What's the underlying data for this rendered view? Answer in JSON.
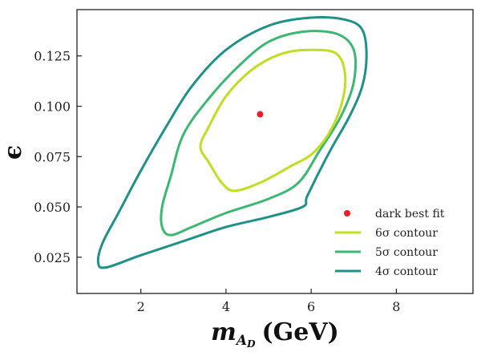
{
  "chart_data": {
    "type": "contour",
    "xlabel_main": "m",
    "xlabel_sub": "A",
    "xlabel_subsub": "D",
    "xlabel_unit": "(GeV)",
    "ylabel": "ϵ",
    "xlim": [
      0.5,
      9.8
    ],
    "ylim": [
      0.007,
      0.148
    ],
    "xticks": [
      2,
      4,
      6,
      8
    ],
    "xtick_labels": [
      "2",
      "4",
      "6",
      "8"
    ],
    "yticks": [
      0.025,
      0.05,
      0.075,
      0.1,
      0.125
    ],
    "ytick_labels": [
      "0.025",
      "0.050",
      "0.075",
      "0.100",
      "0.125"
    ],
    "best_fit": {
      "name": "dark best fit",
      "x": 4.8,
      "y": 0.096,
      "color": "#ee1c24"
    },
    "legend_position": "lower-right",
    "series": [
      {
        "name": "4σ contour",
        "color": "#1f9188",
        "points": [
          [
            1.0,
            0.022
          ],
          [
            1.2,
            0.02
          ],
          [
            2.0,
            0.026
          ],
          [
            3.0,
            0.033
          ],
          [
            4.0,
            0.04
          ],
          [
            5.0,
            0.045
          ],
          [
            5.8,
            0.05
          ],
          [
            5.9,
            0.055
          ],
          [
            6.2,
            0.068
          ],
          [
            6.5,
            0.08
          ],
          [
            6.9,
            0.095
          ],
          [
            7.2,
            0.11
          ],
          [
            7.3,
            0.125
          ],
          [
            7.2,
            0.138
          ],
          [
            6.8,
            0.143
          ],
          [
            6.0,
            0.144
          ],
          [
            5.0,
            0.14
          ],
          [
            4.0,
            0.128
          ],
          [
            3.2,
            0.11
          ],
          [
            2.6,
            0.09
          ],
          [
            2.0,
            0.068
          ],
          [
            1.5,
            0.048
          ],
          [
            1.1,
            0.032
          ]
        ]
      },
      {
        "name": "5σ contour",
        "color": "#3db873",
        "points": [
          [
            2.5,
            0.04
          ],
          [
            2.7,
            0.036
          ],
          [
            3.2,
            0.04
          ],
          [
            4.0,
            0.047
          ],
          [
            5.0,
            0.054
          ],
          [
            5.7,
            0.062
          ],
          [
            6.2,
            0.078
          ],
          [
            6.7,
            0.095
          ],
          [
            7.0,
            0.112
          ],
          [
            7.0,
            0.128
          ],
          [
            6.6,
            0.136
          ],
          [
            5.8,
            0.137
          ],
          [
            5.0,
            0.132
          ],
          [
            4.3,
            0.12
          ],
          [
            3.6,
            0.104
          ],
          [
            3.0,
            0.086
          ],
          [
            2.7,
            0.065
          ],
          [
            2.5,
            0.05
          ]
        ]
      },
      {
        "name": "6σ contour",
        "color": "#c3dd23",
        "points": [
          [
            3.6,
            0.072
          ],
          [
            3.9,
            0.062
          ],
          [
            4.2,
            0.058
          ],
          [
            4.8,
            0.062
          ],
          [
            5.5,
            0.07
          ],
          [
            6.0,
            0.076
          ],
          [
            6.4,
            0.086
          ],
          [
            6.7,
            0.1
          ],
          [
            6.8,
            0.115
          ],
          [
            6.6,
            0.126
          ],
          [
            6.0,
            0.128
          ],
          [
            5.3,
            0.126
          ],
          [
            4.6,
            0.118
          ],
          [
            4.0,
            0.105
          ],
          [
            3.6,
            0.09
          ],
          [
            3.4,
            0.08
          ]
        ]
      }
    ]
  }
}
